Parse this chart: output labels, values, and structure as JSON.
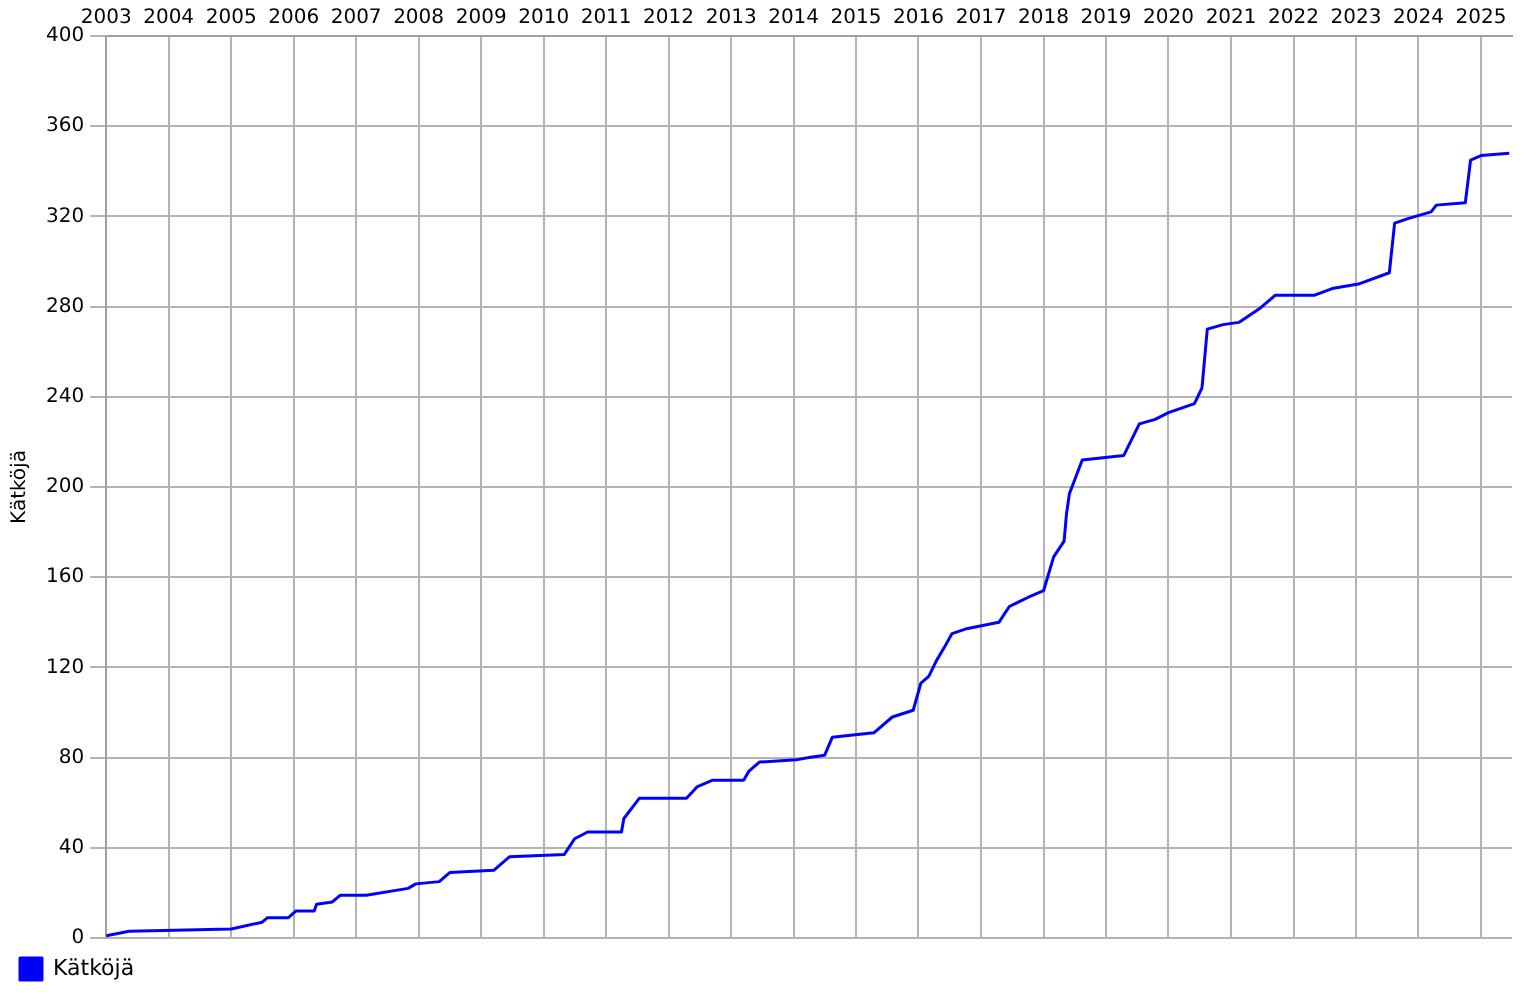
{
  "chart_data": {
    "type": "line",
    "ylabel": "Kätköjä",
    "x": [
      "2003-01-01",
      "2003-05-15",
      "2005-01-01",
      "2005-07-01",
      "2005-08-01",
      "2005-12-01",
      "2006-01-15",
      "2006-05-01",
      "2006-05-15",
      "2006-08-15",
      "2006-10-01",
      "2007-03-01",
      "2007-11-01",
      "2007-12-15",
      "2008-05-01",
      "2008-07-01",
      "2009-03-15",
      "2009-06-15",
      "2010-05-01",
      "2010-07-01",
      "2010-09-15",
      "2011-04-01",
      "2011-04-15",
      "2011-07-15",
      "2012-04-15",
      "2012-06-15",
      "2012-09-15",
      "2013-03-15",
      "2013-04-15",
      "2013-06-15",
      "2014-01-15",
      "2014-04-01",
      "2014-07-01",
      "2014-08-15",
      "2015-04-15",
      "2015-08-01",
      "2015-12-01",
      "2016-01-15",
      "2016-03-01",
      "2016-04-15",
      "2016-06-01",
      "2016-07-15",
      "2016-10-01",
      "2017-04-15",
      "2017-06-15",
      "2017-10-01",
      "2018-01-01",
      "2018-03-01",
      "2018-05-01",
      "2018-05-15",
      "2018-06-01",
      "2018-08-15",
      "2019-04-15",
      "2019-07-15",
      "2019-10-15",
      "2020-01-01",
      "2020-06-01",
      "2020-07-15",
      "2020-08-15",
      "2020-11-15",
      "2021-02-15",
      "2021-06-15",
      "2021-09-15",
      "2022-05-01",
      "2022-08-15",
      "2023-01-15",
      "2023-07-15",
      "2023-08-15",
      "2023-11-01",
      "2024-03-15",
      "2024-04-15",
      "2024-10-01",
      "2024-11-01",
      "2025-01-01",
      "2025-06-15"
    ],
    "series": [
      {
        "name": "Kätköjä",
        "color": "#0000ff",
        "values": [
          1,
          3,
          4,
          7,
          9,
          9,
          12,
          12,
          15,
          16,
          19,
          19,
          22,
          24,
          25,
          29,
          30,
          36,
          37,
          44,
          47,
          47,
          53,
          62,
          62,
          67,
          70,
          70,
          74,
          78,
          79,
          80,
          81,
          89,
          91,
          98,
          101,
          113,
          116,
          123,
          129,
          135,
          137,
          140,
          147,
          151,
          154,
          169,
          176,
          188,
          197,
          212,
          214,
          228,
          230,
          233,
          237,
          244,
          270,
          272,
          273,
          279,
          285,
          285,
          288,
          290,
          295,
          317,
          319,
          322,
          325,
          326,
          345,
          347,
          348
        ]
      }
    ],
    "xlim": [
      "2003-01-01",
      "2025-07-01"
    ],
    "xticks": [
      "2003",
      "2004",
      "2005",
      "2006",
      "2007",
      "2008",
      "2009",
      "2010",
      "2011",
      "2012",
      "2013",
      "2014",
      "2015",
      "2016",
      "2017",
      "2018",
      "2019",
      "2020",
      "2021",
      "2022",
      "2023",
      "2024",
      "2025"
    ],
    "ylim": [
      0,
      400
    ],
    "yticks": [
      0,
      40,
      80,
      120,
      160,
      200,
      240,
      280,
      320,
      360,
      400
    ],
    "grid": true,
    "legend": "bottom left",
    "marker": "none",
    "line_style": "solid"
  }
}
